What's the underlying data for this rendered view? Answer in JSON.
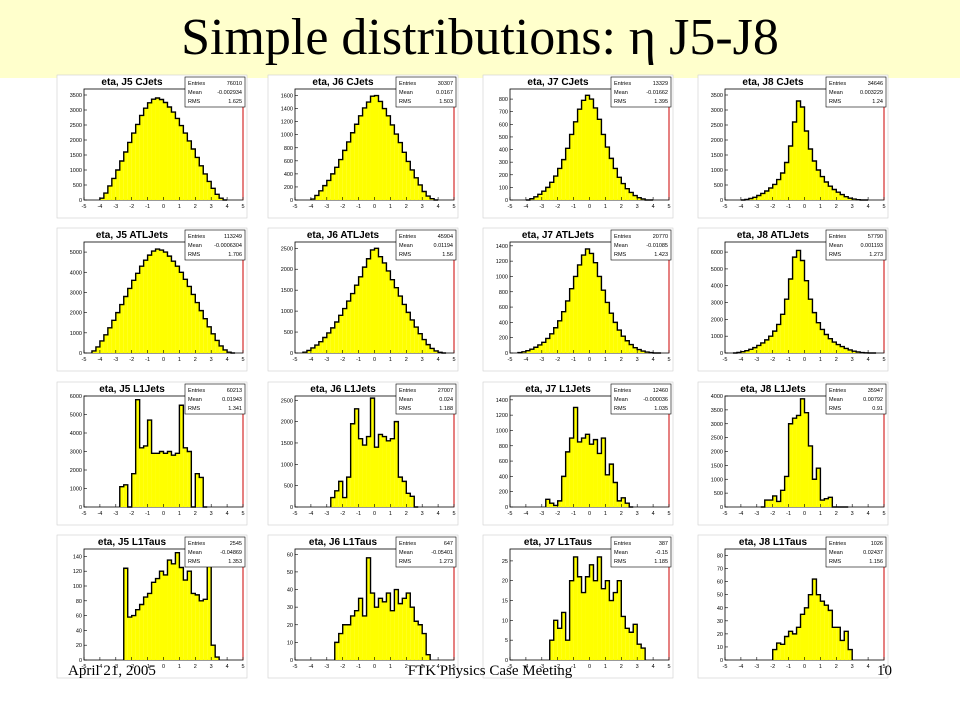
{
  "slide": {
    "title": "Simple distributions: η J5-J8",
    "footer_date": "April 21, 2005",
    "footer_center": "FTK Physics Case Meeting",
    "page_number": "10"
  },
  "colors": {
    "title_band": "#ffffcc",
    "hist_fill": "#ffff00",
    "hist_line": "#000000",
    "frame_red": "#cc0000"
  },
  "chart_data": [
    {
      "type": "bar",
      "title": "eta, J5 CJets",
      "stats": {
        "Entries": "76010",
        "Mean": "-0.002934",
        "RMS": "1.625"
      },
      "xlim": [
        -5,
        5
      ],
      "bin_width": 0.25,
      "yticks": [
        0,
        500,
        1000,
        1500,
        2000,
        2500,
        3000,
        3500
      ],
      "ylim": [
        0,
        3700
      ],
      "x_start": -4.0,
      "values": [
        60,
        230,
        470,
        720,
        1000,
        1300,
        1600,
        1920,
        2230,
        2520,
        2820,
        3060,
        3240,
        3360,
        3400,
        3350,
        3250,
        3100,
        2930,
        2720,
        2480,
        2230,
        1970,
        1700,
        1420,
        1140,
        870,
        620,
        390,
        190,
        60,
        0
      ]
    },
    {
      "type": "bar",
      "title": "eta, J6 CJets",
      "stats": {
        "Entries": "30307",
        "Mean": "0.0167",
        "RMS": "1.503"
      },
      "xlim": [
        -5,
        5
      ],
      "bin_width": 0.25,
      "yticks": [
        0,
        200,
        400,
        600,
        800,
        1000,
        1200,
        1400,
        1600
      ],
      "ylim": [
        0,
        1700
      ],
      "x_start": -4.0,
      "values": [
        15,
        70,
        140,
        220,
        300,
        400,
        500,
        620,
        760,
        890,
        1030,
        1160,
        1290,
        1410,
        1500,
        1590,
        1600,
        1510,
        1400,
        1290,
        1150,
        1010,
        880,
        730,
        590,
        460,
        340,
        230,
        130,
        60,
        20,
        0
      ]
    },
    {
      "type": "bar",
      "title": "eta, J7 CJets",
      "stats": {
        "Entries": "13329",
        "Mean": "-0.01662",
        "RMS": "1.395"
      },
      "xlim": [
        -5,
        5
      ],
      "bin_width": 0.25,
      "yticks": [
        0,
        100,
        200,
        300,
        400,
        500,
        600,
        700,
        800
      ],
      "ylim": [
        0,
        880
      ],
      "x_start": -4.0,
      "values": [
        0,
        10,
        25,
        45,
        70,
        100,
        140,
        190,
        250,
        320,
        410,
        520,
        620,
        720,
        790,
        830,
        800,
        730,
        640,
        520,
        420,
        330,
        250,
        180,
        130,
        90,
        60,
        35,
        18,
        8,
        0,
        0
      ]
    },
    {
      "type": "bar",
      "title": "eta, J8 CJets",
      "stats": {
        "Entries": "34646",
        "Mean": "0.003229",
        "RMS": "1.24"
      },
      "xlim": [
        -5,
        5
      ],
      "bin_width": 0.25,
      "yticks": [
        0,
        500,
        1000,
        1500,
        2000,
        2500,
        3000,
        3500
      ],
      "ylim": [
        0,
        3700
      ],
      "x_start": -4.0,
      "values": [
        0,
        20,
        50,
        90,
        150,
        220,
        300,
        400,
        520,
        680,
        900,
        1250,
        1800,
        2600,
        3300,
        3100,
        2300,
        1700,
        1300,
        1000,
        780,
        600,
        460,
        350,
        260,
        180,
        110,
        60,
        30,
        10,
        0,
        0
      ]
    },
    {
      "type": "bar",
      "title": "eta, J5 ATLJets",
      "stats": {
        "Entries": "113249",
        "Mean": "-0.0006304",
        "RMS": "1.706"
      },
      "xlim": [
        -5,
        5
      ],
      "bin_width": 0.25,
      "yticks": [
        0,
        1000,
        2000,
        3000,
        4000,
        5000
      ],
      "ylim": [
        0,
        5500
      ],
      "x_start": -4.5,
      "values": [
        100,
        300,
        600,
        900,
        1250,
        1620,
        2000,
        2400,
        2800,
        3200,
        3600,
        3950,
        4300,
        4600,
        4850,
        5050,
        5150,
        5100,
        5000,
        4800,
        4550,
        4300,
        4000,
        3650,
        3300,
        2900,
        2500,
        2100,
        1700,
        1300,
        950,
        620,
        350,
        150,
        40,
        0
      ]
    },
    {
      "type": "bar",
      "title": "eta, J6 ATLJets",
      "stats": {
        "Entries": "45904",
        "Mean": "0.01194",
        "RMS": "1.56"
      },
      "xlim": [
        -5,
        5
      ],
      "bin_width": 0.25,
      "yticks": [
        0,
        500,
        1000,
        1500,
        2000,
        2500
      ],
      "ylim": [
        0,
        2650
      ],
      "x_start": -4.5,
      "values": [
        20,
        60,
        120,
        190,
        270,
        370,
        480,
        600,
        740,
        900,
        1060,
        1240,
        1420,
        1620,
        1820,
        2050,
        2250,
        2460,
        2500,
        2300,
        2150,
        1960,
        1750,
        1560,
        1360,
        1160,
        970,
        790,
        620,
        460,
        320,
        200,
        110,
        50,
        15,
        0
      ]
    },
    {
      "type": "bar",
      "title": "eta, J7 ATLJets",
      "stats": {
        "Entries": "20770",
        "Mean": "-0.01085",
        "RMS": "1.423"
      },
      "xlim": [
        -5,
        5
      ],
      "bin_width": 0.25,
      "yticks": [
        0,
        200,
        400,
        600,
        800,
        1000,
        1200,
        1400
      ],
      "ylim": [
        0,
        1450
      ],
      "x_start": -4.5,
      "values": [
        5,
        15,
        30,
        50,
        75,
        105,
        140,
        190,
        250,
        330,
        420,
        540,
        680,
        840,
        1000,
        1150,
        1280,
        1360,
        1300,
        1180,
        1000,
        820,
        660,
        520,
        400,
        300,
        220,
        160,
        110,
        70,
        45,
        25,
        12,
        5,
        0,
        0
      ]
    },
    {
      "type": "bar",
      "title": "eta, J8 ATLJets",
      "stats": {
        "Entries": "57790",
        "Mean": "0.001193",
        "RMS": "1.273"
      },
      "xlim": [
        -5,
        5
      ],
      "bin_width": 0.25,
      "yticks": [
        0,
        1000,
        2000,
        3000,
        4000,
        5000,
        6000
      ],
      "ylim": [
        0,
        6600
      ],
      "x_start": -4.5,
      "values": [
        0,
        30,
        80,
        140,
        220,
        320,
        450,
        600,
        780,
        1000,
        1300,
        1700,
        2300,
        3200,
        4400,
        5700,
        6100,
        5500,
        4300,
        3200,
        2400,
        1800,
        1400,
        1100,
        850,
        650,
        500,
        380,
        270,
        180,
        110,
        60,
        25,
        8,
        0,
        0
      ]
    },
    {
      "type": "bar",
      "title": "eta, J5 L1Jets",
      "stats": {
        "Entries": "60213",
        "Mean": "0.01943",
        "RMS": "1.341"
      },
      "xlim": [
        -5,
        5
      ],
      "bin_width": 0.25,
      "yticks": [
        0,
        1000,
        2000,
        3000,
        4000,
        5000,
        6000
      ],
      "ylim": [
        0,
        6000
      ],
      "x_start": -2.75,
      "values": [
        1100,
        1200,
        0,
        1800,
        5800,
        3200,
        3300,
        4700,
        2900,
        2900,
        3000,
        2900,
        3000,
        2800,
        2900,
        5500,
        3200,
        3000,
        0,
        1800,
        1600,
        0
      ]
    },
    {
      "type": "bar",
      "title": "eta, J6 L1Jets",
      "stats": {
        "Entries": "27007",
        "Mean": "0.024",
        "RMS": "1.188"
      },
      "xlim": [
        -5,
        5
      ],
      "bin_width": 0.25,
      "yticks": [
        0,
        500,
        1000,
        1500,
        2000,
        2500
      ],
      "ylim": [
        0,
        2600
      ],
      "x_start": -2.75,
      "values": [
        220,
        380,
        600,
        220,
        700,
        1950,
        2300,
        1600,
        1450,
        1650,
        2550,
        1400,
        1700,
        1650,
        1550,
        1600,
        2000,
        700,
        600,
        320,
        250,
        0
      ]
    },
    {
      "type": "bar",
      "title": "eta, J7 L1Jets",
      "stats": {
        "Entries": "12460",
        "Mean": "-0.000036",
        "RMS": "1.035"
      },
      "xlim": [
        -5,
        5
      ],
      "bin_width": 0.25,
      "yticks": [
        0,
        200,
        400,
        600,
        800,
        1000,
        1200,
        1400
      ],
      "ylim": [
        0,
        1450
      ],
      "x_start": -2.75,
      "values": [
        100,
        50,
        20,
        80,
        400,
        720,
        900,
        1300,
        850,
        900,
        950,
        820,
        880,
        700,
        900,
        420,
        560,
        320,
        80,
        120,
        50,
        0
      ]
    },
    {
      "type": "bar",
      "title": "eta, J8 L1Jets",
      "stats": {
        "Entries": "35947",
        "Mean": "0.00792",
        "RMS": "0.91"
      },
      "xlim": [
        -5,
        5
      ],
      "bin_width": 0.25,
      "yticks": [
        0,
        500,
        1000,
        1500,
        2000,
        2500,
        3000,
        3500,
        4000
      ],
      "ylim": [
        0,
        4000
      ],
      "x_start": -2.75,
      "values": [
        0,
        250,
        250,
        400,
        200,
        600,
        1100,
        3000,
        3200,
        3300,
        3900,
        3400,
        2200,
        1000,
        1400,
        250,
        300,
        350,
        0,
        0,
        0,
        0
      ]
    },
    {
      "type": "bar",
      "title": "eta, J5 L1Taus",
      "stats": {
        "Entries": "2545",
        "Mean": "-0.04869",
        "RMS": "1.353"
      },
      "xlim": [
        -5,
        5
      ],
      "bin_width": 0.25,
      "yticks": [
        0,
        20,
        40,
        60,
        80,
        100,
        120,
        140
      ],
      "ylim": [
        0,
        150
      ],
      "x_start": -2.5,
      "values": [
        124,
        58,
        60,
        68,
        75,
        85,
        90,
        105,
        110,
        120,
        115,
        135,
        130,
        145,
        125,
        108,
        120,
        90,
        88,
        80,
        82,
        130,
        20,
        4
      ]
    },
    {
      "type": "bar",
      "title": "eta, J6 L1Taus",
      "stats": {
        "Entries": "647",
        "Mean": "-0.05401",
        "RMS": "1.273"
      },
      "xlim": [
        -5,
        5
      ],
      "bin_width": 0.25,
      "yticks": [
        0,
        10,
        20,
        30,
        40,
        50,
        60
      ],
      "ylim": [
        0,
        63
      ],
      "x_start": -2.5,
      "values": [
        10,
        15,
        20,
        20,
        25,
        28,
        35,
        25,
        58,
        38,
        30,
        35,
        33,
        38,
        28,
        40,
        32,
        35,
        38,
        30,
        22,
        20,
        15,
        3
      ]
    },
    {
      "type": "bar",
      "title": "eta, J7 L1Taus",
      "stats": {
        "Entries": "387",
        "Mean": "-0.15",
        "RMS": "1.185"
      },
      "xlim": [
        -5,
        5
      ],
      "bin_width": 0.25,
      "yticks": [
        0,
        5,
        10,
        15,
        20,
        25
      ],
      "ylim": [
        0,
        28
      ],
      "x_start": -2.5,
      "values": [
        5,
        10,
        8,
        12,
        5,
        20,
        26,
        21,
        17,
        21,
        24,
        20,
        26,
        18,
        20,
        15,
        17,
        20,
        11,
        8,
        7,
        9,
        4,
        3
      ]
    },
    {
      "type": "bar",
      "title": "eta, J8 L1Taus",
      "stats": {
        "Entries": "1026",
        "Mean": "0.02437",
        "RMS": "1.156"
      },
      "xlim": [
        -5,
        5
      ],
      "bin_width": 0.25,
      "yticks": [
        0,
        10,
        20,
        30,
        40,
        50,
        60,
        70,
        80
      ],
      "ylim": [
        0,
        85
      ],
      "x_start": -2.0,
      "values": [
        8,
        13,
        12,
        18,
        22,
        20,
        25,
        35,
        40,
        50,
        62,
        50,
        45,
        42,
        38,
        25,
        25,
        15,
        22,
        8
      ]
    }
  ]
}
